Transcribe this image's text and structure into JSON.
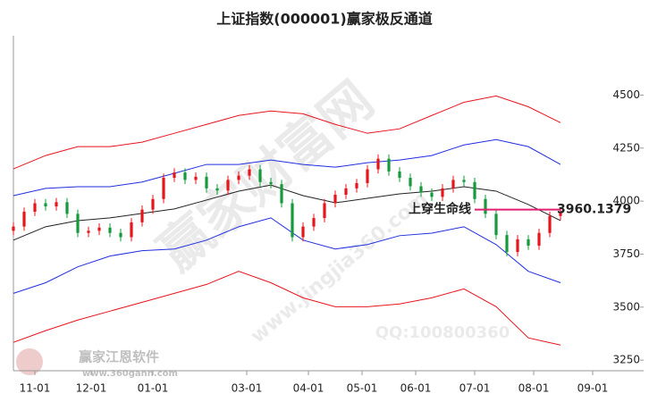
{
  "chart_data": {
    "type": "candlestick",
    "title": "上证指数(000001)赢家极反通道",
    "x": [
      0,
      4,
      8,
      12,
      16,
      20,
      24,
      28,
      32,
      36,
      40,
      44,
      48,
      52,
      56,
      60,
      64,
      68,
      72,
      76,
      80,
      84,
      88,
      92,
      96,
      100,
      104,
      108,
      112,
      116,
      120,
      124,
      128,
      132,
      136,
      140,
      144,
      148,
      152,
      156,
      160,
      164,
      168,
      172,
      176,
      180,
      184,
      188,
      192,
      196,
      200,
      204
    ],
    "open": [
      3860,
      3880,
      3950,
      3990,
      3975,
      3995,
      3940,
      3850,
      3860,
      3875,
      3850,
      3830,
      3900,
      3960,
      4010,
      4110,
      4135,
      4100,
      4115,
      4060,
      4050,
      4100,
      4120,
      4150,
      4090,
      4080,
      3990,
      3830,
      3880,
      3920,
      3990,
      4030,
      4060,
      4085,
      4150,
      4200,
      4140,
      4110,
      4070,
      4040,
      4020,
      4060,
      4100,
      4090,
      4010,
      3940,
      3840,
      3760,
      3820,
      3790,
      3850,
      3930
    ],
    "high": [
      3900,
      3970,
      4010,
      4010,
      4015,
      4015,
      3960,
      3880,
      3895,
      3895,
      3870,
      3920,
      3980,
      4030,
      4130,
      4155,
      4155,
      4135,
      4135,
      4080,
      4120,
      4140,
      4170,
      4170,
      4110,
      4100,
      4010,
      3900,
      3940,
      4010,
      4050,
      4080,
      4105,
      4170,
      4220,
      4220,
      4160,
      4130,
      4090,
      4060,
      4080,
      4120,
      4120,
      4110,
      4030,
      3960,
      3860,
      3840,
      3840,
      3870,
      3950,
      3970
    ],
    "low": [
      3840,
      3860,
      3930,
      3955,
      3955,
      3920,
      3830,
      3830,
      3840,
      3830,
      3810,
      3810,
      3880,
      3940,
      3990,
      4090,
      4080,
      4080,
      4040,
      4030,
      4030,
      4080,
      4100,
      4070,
      4060,
      3970,
      3810,
      3810,
      3860,
      3900,
      3970,
      4010,
      4040,
      4065,
      4130,
      4120,
      4090,
      4050,
      4020,
      4000,
      4000,
      4040,
      4070,
      3990,
      3920,
      3820,
      3740,
      3740,
      3770,
      3770,
      3830,
      3910
    ],
    "close": [
      3880,
      3950,
      3990,
      3975,
      3995,
      3940,
      3850,
      3860,
      3875,
      3850,
      3830,
      3900,
      3960,
      4010,
      4110,
      4135,
      4100,
      4115,
      4060,
      4050,
      4100,
      4120,
      4150,
      4090,
      4080,
      3990,
      3830,
      3880,
      3920,
      3990,
      4030,
      4060,
      4085,
      4150,
      4200,
      4140,
      4110,
      4070,
      4040,
      4020,
      4060,
      4100,
      4090,
      4010,
      3940,
      3840,
      3760,
      3820,
      3790,
      3850,
      3930,
      3950
    ],
    "up_color": "#e8141b",
    "down_color": "#139b3b",
    "bands": {
      "x": [
        0,
        12,
        24,
        36,
        48,
        60,
        72,
        84,
        96,
        108,
        120,
        132,
        144,
        156,
        168,
        180,
        192,
        204
      ],
      "series": [
        {
          "color": "#e8141b",
          "values": [
            4152,
            4215,
            4257,
            4257,
            4278,
            4320,
            4362,
            4404,
            4425,
            4412,
            4362,
            4320,
            4341,
            4404,
            4466,
            4496,
            4445,
            4370
          ]
        },
        {
          "color": "#1f2ee0",
          "values": [
            4026,
            4060,
            4068,
            4068,
            4090,
            4131,
            4173,
            4173,
            4194,
            4173,
            4160,
            4181,
            4194,
            4215,
            4265,
            4290,
            4257,
            4173
          ]
        },
        {
          "color": "#222222",
          "values": [
            3816,
            3879,
            3908,
            3921,
            3942,
            3963,
            4005,
            4047,
            4076,
            4026,
            3992,
            4013,
            4034,
            4047,
            4068,
            4047,
            3984,
            3908
          ]
        },
        {
          "color": "#1f2ee0",
          "values": [
            3565,
            3615,
            3690,
            3741,
            3766,
            3774,
            3816,
            3879,
            3921,
            3816,
            3774,
            3795,
            3837,
            3849,
            3879,
            3795,
            3669,
            3615
          ]
        },
        {
          "color": "#e8141b",
          "values": [
            3334,
            3389,
            3439,
            3481,
            3523,
            3565,
            3607,
            3669,
            3615,
            3544,
            3502,
            3502,
            3515,
            3544,
            3586,
            3502,
            3355,
            3321
          ]
        }
      ]
    },
    "level": 3960.1379,
    "level_x": [
      172,
      204
    ],
    "level_color": "#e0206e",
    "annotation": "上穿生命线",
    "xlim": [
      0,
      235
    ],
    "ylim": [
      3200,
      4780
    ],
    "yticks": [
      3250,
      3500,
      3750,
      4000,
      4250,
      4500
    ],
    "xticks": [
      {
        "value": 8,
        "label": "11-01"
      },
      {
        "value": 29,
        "label": "12-01"
      },
      {
        "value": 52,
        "label": "01-01"
      },
      {
        "value": 87,
        "label": "03-01"
      },
      {
        "value": 110,
        "label": "04-01"
      },
      {
        "value": 130,
        "label": "05-01"
      },
      {
        "value": 150,
        "label": "06-01"
      },
      {
        "value": 172,
        "label": "07-01"
      },
      {
        "value": 194,
        "label": "08-01"
      },
      {
        "value": 216,
        "label": "09-01"
      }
    ],
    "watermarks": [
      "赢家财富网",
      "www.jingjia360.com",
      "QQ:100800360",
      "赢家江恩软件",
      "www.360gann.com"
    ]
  }
}
